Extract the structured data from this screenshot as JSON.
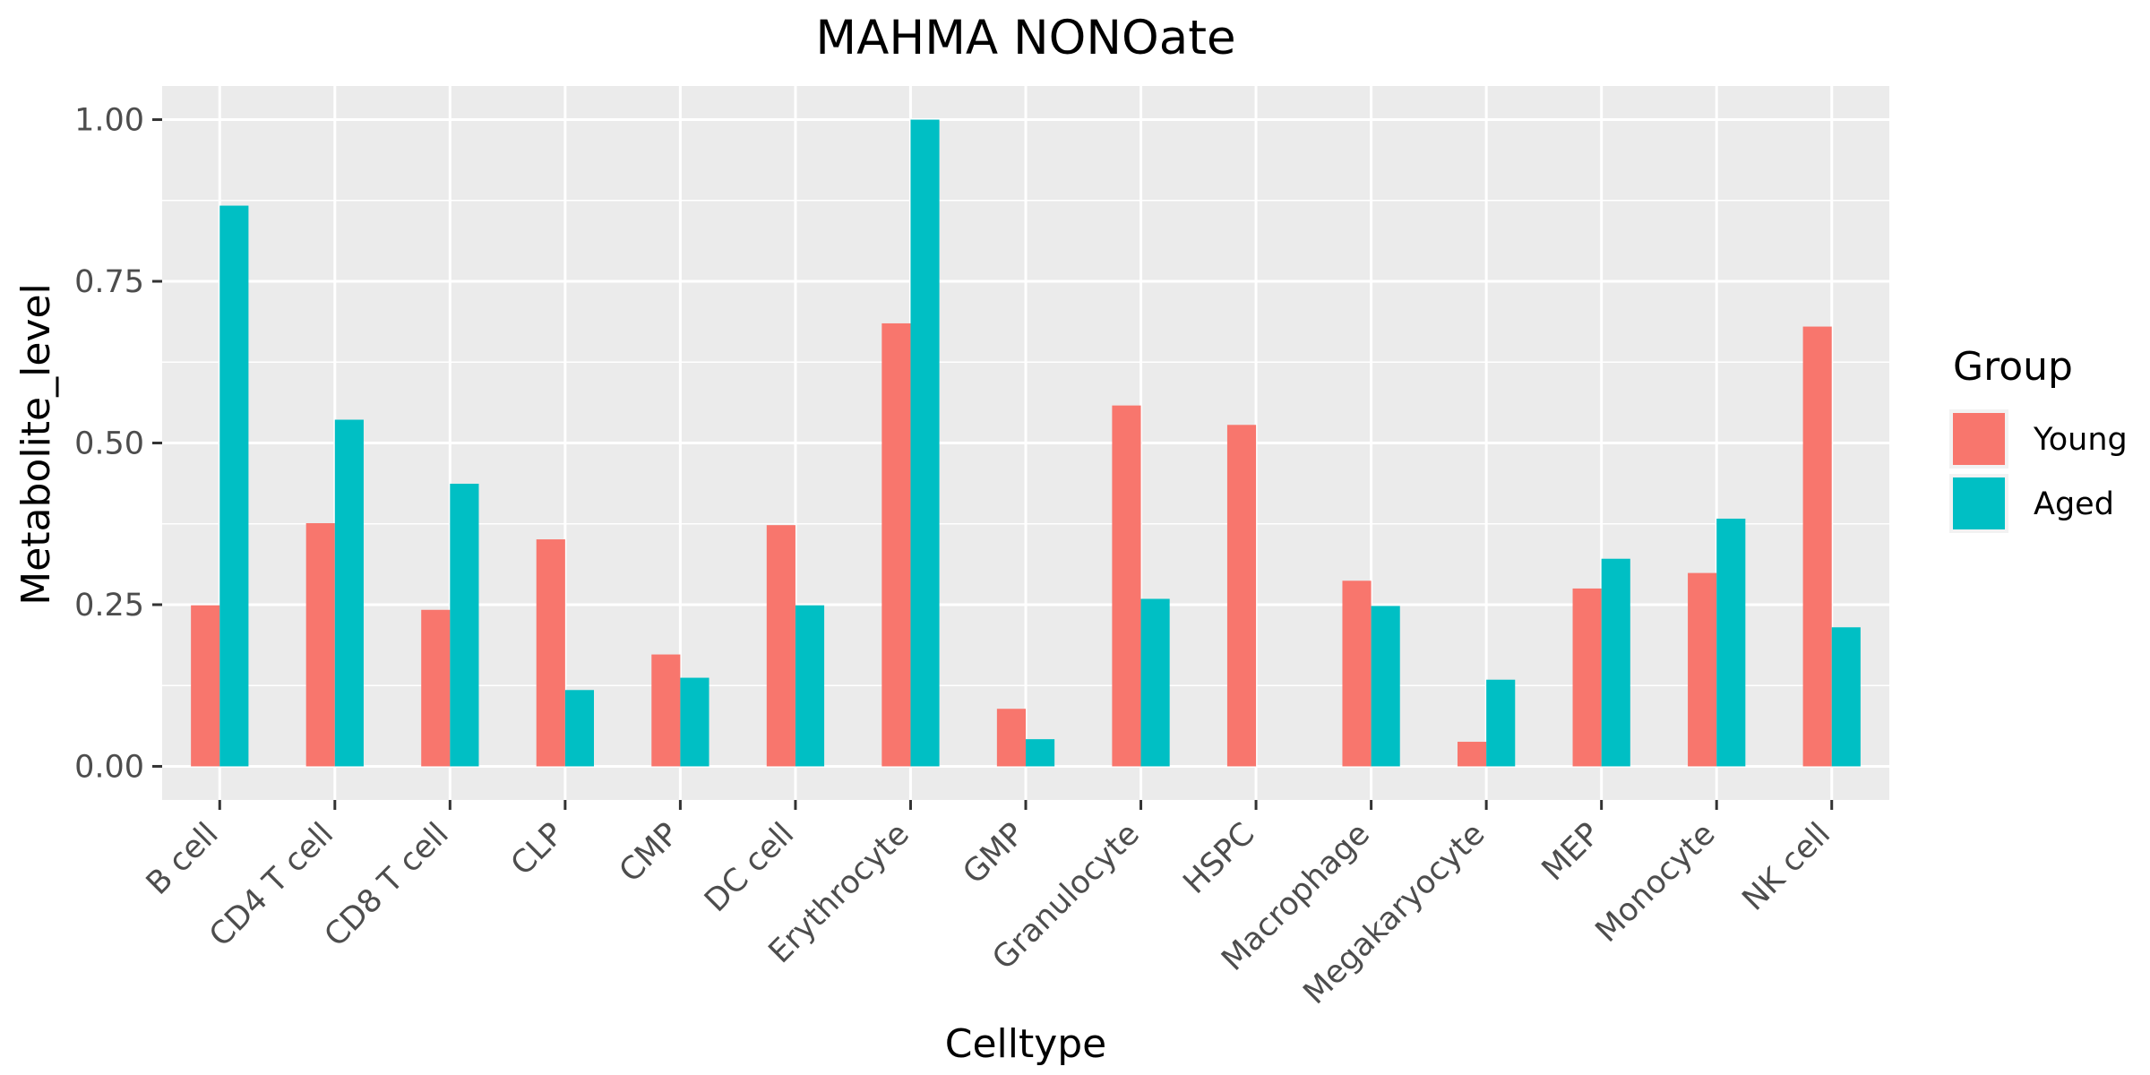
{
  "chart_data": {
    "type": "bar",
    "title": "MAHMA NONOate",
    "xlabel": "Celltype",
    "ylabel": "Metabolite_level",
    "categories": [
      "B cell",
      "CD4 T cell",
      "CD8 T cell",
      "CLP",
      "CMP",
      "DC cell",
      "Erythrocyte",
      "GMP",
      "Granulocyte",
      "HSPC",
      "Macrophage",
      "Megakaryocyte",
      "MEP",
      "Monocyte",
      "NK cell"
    ],
    "series": [
      {
        "name": "Young",
        "color": "#F8766D",
        "values": [
          0.249,
          0.376,
          0.242,
          0.351,
          0.173,
          0.373,
          0.685,
          0.089,
          0.558,
          0.528,
          0.287,
          0.038,
          0.275,
          0.299,
          0.68
        ]
      },
      {
        "name": "Aged",
        "color": "#00BFC4",
        "values": [
          0.867,
          0.536,
          0.437,
          0.118,
          0.137,
          0.249,
          1.0,
          0.042,
          0.259,
          0.0,
          0.248,
          0.134,
          0.321,
          0.383,
          0.215
        ]
      }
    ],
    "ylim": [
      -0.052,
      1.052
    ],
    "yticks": [
      0.0,
      0.25,
      0.5,
      0.75,
      1.0
    ],
    "ytick_labels": [
      "0.00",
      "0.25",
      "0.50",
      "0.75",
      "1.00"
    ],
    "grid": true,
    "panel_background": "#EBEBEB",
    "legend": {
      "title": "Group",
      "position": "right"
    }
  }
}
